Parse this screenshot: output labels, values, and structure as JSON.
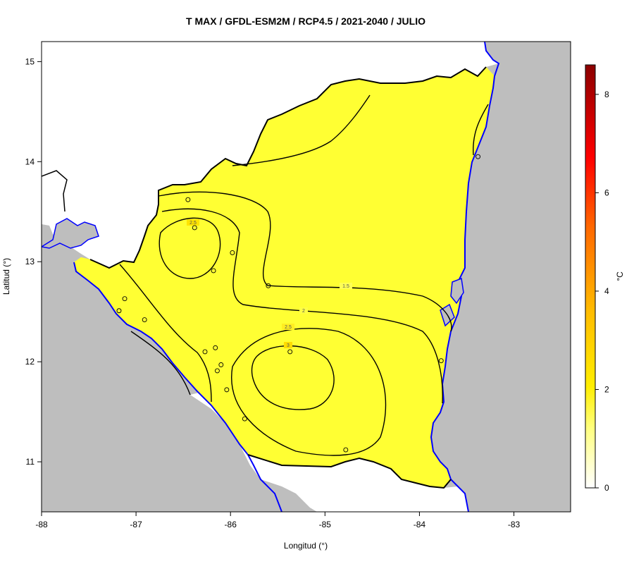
{
  "title": "T MAX / GFDL-ESM2M / RCP4.5 / 2021-2040 / JULIO",
  "axes": {
    "xlabel": "Longitud (°)",
    "ylabel": "Latitud (°)",
    "xticks": [
      "-88",
      "-87",
      "-86",
      "-85",
      "-84",
      "-83"
    ],
    "yticks": [
      "11",
      "12",
      "13",
      "14",
      "15"
    ],
    "xlim": [
      -88,
      -82.4
    ],
    "ylim": [
      10.5,
      15.2
    ]
  },
  "colorbar": {
    "unit": "°C",
    "ticks": [
      "0",
      "2",
      "4",
      "6",
      "8"
    ],
    "range": [
      0,
      8.6
    ],
    "colors": [
      "#ffffff",
      "#ffff66",
      "#ffee00",
      "#ffbb00",
      "#ff7700",
      "#ff0000",
      "#8b0000"
    ]
  },
  "contours": [
    {
      "label": "1.5",
      "value": 1.5
    },
    {
      "label": "2",
      "value": 2
    },
    {
      "label": "2.5",
      "value": 2.5
    },
    {
      "label": "2.5",
      "value": 2.5
    },
    {
      "label": "3",
      "value": 3
    }
  ],
  "stations": [
    {
      "lon": -86.45,
      "lat": 13.62
    },
    {
      "lon": -86.38,
      "lat": 13.34
    },
    {
      "lon": -86.18,
      "lat": 12.91
    },
    {
      "lon": -85.98,
      "lat": 13.09
    },
    {
      "lon": -85.6,
      "lat": 12.76
    },
    {
      "lon": -87.12,
      "lat": 12.63
    },
    {
      "lon": -87.18,
      "lat": 12.51
    },
    {
      "lon": -86.91,
      "lat": 12.42
    },
    {
      "lon": -86.27,
      "lat": 12.1
    },
    {
      "lon": -86.16,
      "lat": 12.14
    },
    {
      "lon": -86.1,
      "lat": 11.97
    },
    {
      "lon": -86.14,
      "lat": 11.91
    },
    {
      "lon": -86.04,
      "lat": 11.72
    },
    {
      "lon": -85.85,
      "lat": 11.43
    },
    {
      "lon": -85.37,
      "lat": 12.1
    },
    {
      "lon": -84.78,
      "lat": 11.12
    },
    {
      "lon": -83.77,
      "lat": 12.01
    },
    {
      "lon": -83.38,
      "lat": 14.05
    }
  ],
  "colors": {
    "sea": "#bebebe",
    "coast": "#0000ff",
    "border": "#000000",
    "land_low": "#ffff9a",
    "land_mid": "#ffff22",
    "land_high": "#ffbb00"
  }
}
